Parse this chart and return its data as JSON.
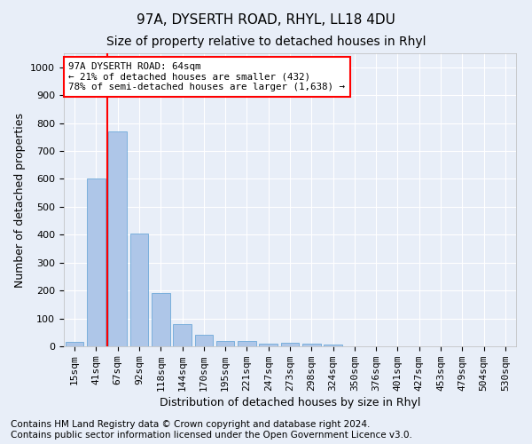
{
  "title": "97A, DYSERTH ROAD, RHYL, LL18 4DU",
  "subtitle": "Size of property relative to detached houses in Rhyl",
  "xlabel": "Distribution of detached houses by size in Rhyl",
  "ylabel": "Number of detached properties",
  "bar_labels": [
    "15sqm",
    "41sqm",
    "67sqm",
    "92sqm",
    "118sqm",
    "144sqm",
    "170sqm",
    "195sqm",
    "221sqm",
    "247sqm",
    "273sqm",
    "298sqm",
    "324sqm",
    "350sqm",
    "376sqm",
    "401sqm",
    "427sqm",
    "453sqm",
    "479sqm",
    "504sqm",
    "530sqm"
  ],
  "bar_values": [
    15,
    600,
    770,
    405,
    190,
    78,
    40,
    18,
    18,
    10,
    13,
    9,
    5,
    0,
    0,
    0,
    0,
    0,
    0,
    0,
    0
  ],
  "bar_color": "#aec6e8",
  "bar_edge_color": "#5a9fd4",
  "vline_x": 1.5,
  "vline_color": "red",
  "annotation_text": "97A DYSERTH ROAD: 64sqm\n← 21% of detached houses are smaller (432)\n78% of semi-detached houses are larger (1,638) →",
  "annotation_box_color": "white",
  "annotation_box_edge_color": "red",
  "ylim": [
    0,
    1050
  ],
  "yticks": [
    0,
    100,
    200,
    300,
    400,
    500,
    600,
    700,
    800,
    900,
    1000
  ],
  "background_color": "#e8eef8",
  "grid_color": "white",
  "footer": "Contains HM Land Registry data © Crown copyright and database right 2024.\nContains public sector information licensed under the Open Government Licence v3.0.",
  "title_fontsize": 11,
  "subtitle_fontsize": 10,
  "xlabel_fontsize": 9,
  "ylabel_fontsize": 9,
  "tick_fontsize": 8,
  "footer_fontsize": 7.5
}
